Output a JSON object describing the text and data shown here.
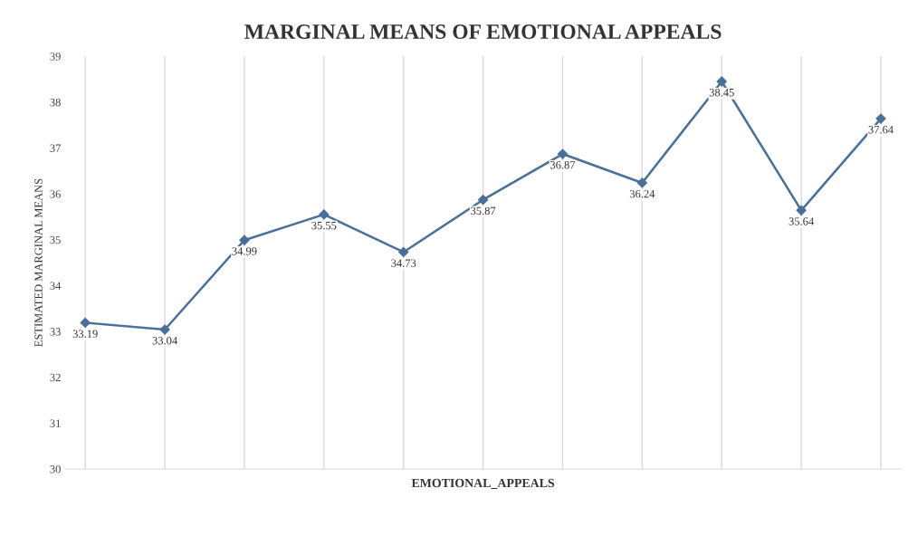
{
  "chart_data": {
    "type": "line",
    "title": "MARGINAL MEANS OF EMOTIONAL APPEALS",
    "xlabel": "EMOTIONAL_APPEALS",
    "ylabel": "ESTIMATED MARGINAL MEANS",
    "categories": [
      null,
      null,
      null,
      null,
      null,
      null,
      null,
      null,
      null,
      null,
      null
    ],
    "series": [
      {
        "color": "#4a6f9a",
        "values": [
          33.19,
          33.04,
          34.99,
          35.55,
          34.73,
          35.87,
          36.87,
          36.24,
          38.45,
          35.64,
          37.64
        ]
      }
    ],
    "ylim": [
      30,
      39
    ],
    "yticks": [
      30,
      31,
      32,
      33,
      34,
      35,
      36,
      37,
      38,
      39
    ],
    "grid": "x",
    "marker": "diamond",
    "line_style": "solid",
    "data_labels": true
  }
}
